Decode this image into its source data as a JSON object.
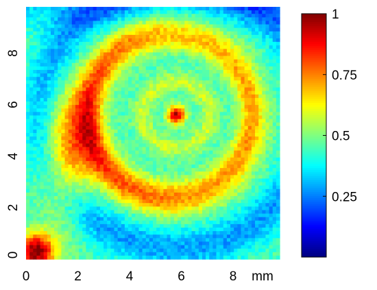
{
  "chart_data": {
    "type": "heatmap",
    "title": "",
    "x_ticks": [
      "0",
      "2",
      "4",
      "6",
      "8"
    ],
    "x_unit": "mm",
    "y_ticks": [
      "0",
      "2",
      "4",
      "6",
      "8"
    ],
    "xlim": [
      0,
      9.8
    ],
    "ylim": [
      0,
      9.8
    ],
    "colorbar": {
      "range": [
        0,
        1
      ],
      "tick_labels": [
        "1",
        "0.75",
        "0.5",
        "0.25"
      ],
      "tick_values": [
        1,
        0.75,
        0.5,
        0.25
      ],
      "colormap": "jet",
      "colors": [
        "#00007f",
        "#0000ff",
        "#007fff",
        "#00ffff",
        "#7fff7f",
        "#ffff00",
        "#ff7f00",
        "#ff0000",
        "#7f0000"
      ]
    },
    "pattern": {
      "description_values": "normalized intensity, concentric ring pattern",
      "center_mm": [
        5.8,
        5.6
      ],
      "center_value": 0.95,
      "ring1_radius_mm": 1.3,
      "ring1_value": 0.62,
      "ring2_radius_mm": 3.4,
      "ring2_value": 0.82,
      "ring3_radius_mm": 5.2,
      "ring3_value": 0.28,
      "background_value": 0.45,
      "hot_arc_center_mm": [
        1.6,
        4.2
      ],
      "hot_arc_value": 0.9,
      "corner_hot_mm": [
        0.4,
        0.3
      ],
      "corner_hot_value": 0.85
    }
  }
}
